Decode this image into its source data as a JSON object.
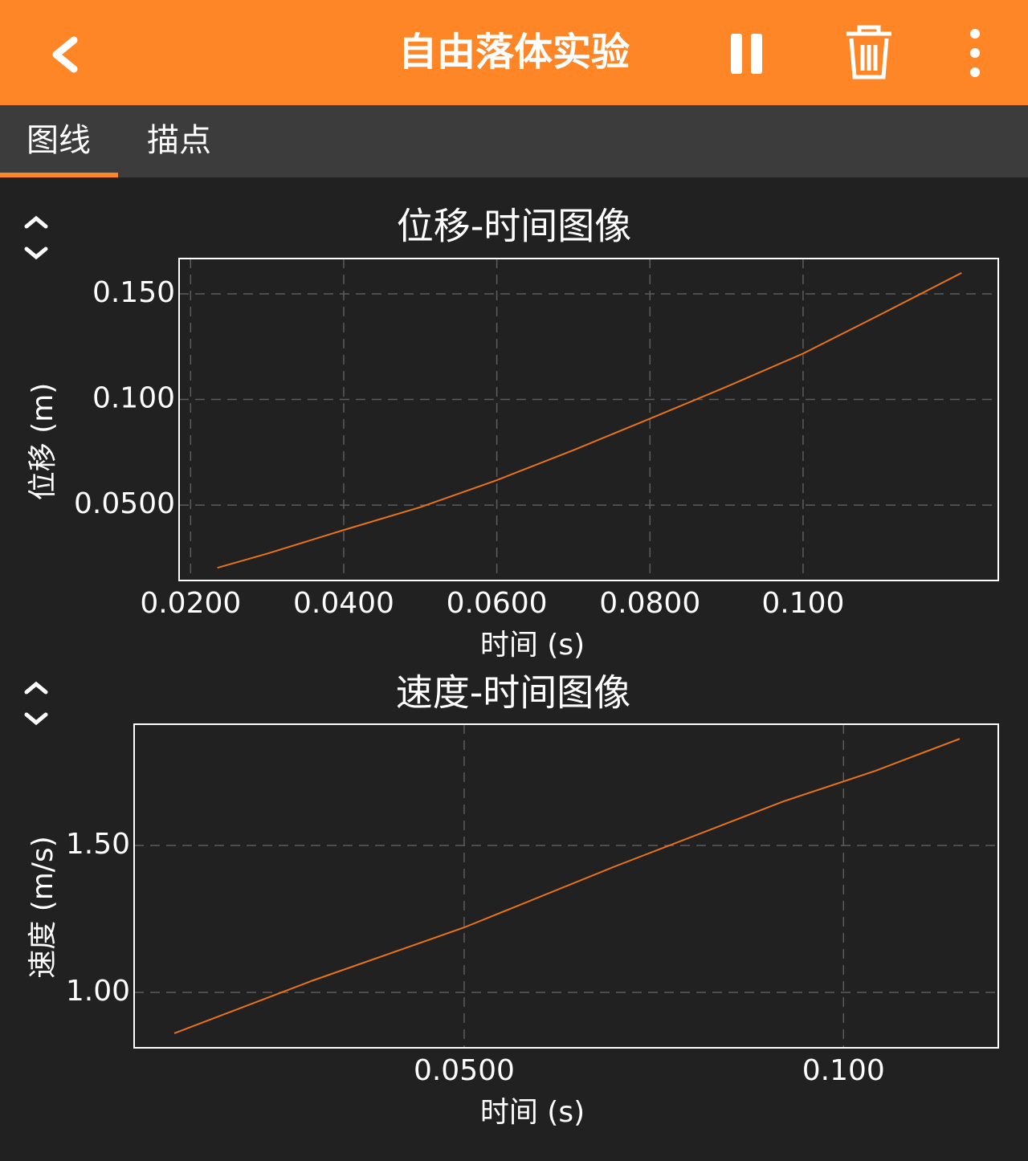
{
  "header": {
    "title": "自由落体实验"
  },
  "tabs": [
    "图线",
    "描点"
  ],
  "chart_data": [
    {
      "type": "line",
      "title": "位移-时间图像",
      "x_label": "时间 (s)",
      "y_label": "位移 (m)",
      "x": [
        0.0235,
        0.03,
        0.04,
        0.05,
        0.06,
        0.07,
        0.08,
        0.09,
        0.1,
        0.11,
        0.1207
      ],
      "values": [
        0.0203,
        0.027,
        0.0382,
        0.049,
        0.0618,
        0.076,
        0.0909,
        0.106,
        0.1217,
        0.14,
        0.1599
      ],
      "color": "#e8731a",
      "xlim": [
        0.0185,
        0.1255
      ],
      "ylim": [
        0.0143,
        0.1667
      ],
      "xticks": [
        {
          "value": 0.02,
          "label": "0.0200"
        },
        {
          "value": 0.04,
          "label": "0.0400"
        },
        {
          "value": 0.06,
          "label": "0.0600"
        },
        {
          "value": 0.08,
          "label": "0.0800"
        },
        {
          "value": 0.1,
          "label": "0.100"
        }
      ],
      "yticks": [
        {
          "value": 0.05,
          "label": "0.0500"
        },
        {
          "value": 0.1,
          "label": "0.100"
        },
        {
          "value": 0.15,
          "label": "0.150"
        }
      ],
      "grid": true
    },
    {
      "type": "line",
      "title": "速度-时间图像",
      "x_label": "时间 (s)",
      "y_label": "速度 (m/s)",
      "x": [
        0.0118,
        0.03,
        0.05,
        0.07,
        0.0921,
        0.1042,
        0.1153
      ],
      "values": [
        0.861,
        1.04,
        1.221,
        1.43,
        1.65,
        1.754,
        1.863
      ],
      "color": "#e8731a",
      "xlim": [
        0.0065,
        0.1204
      ],
      "ylim": [
        0.8115,
        1.9126
      ],
      "xticks": [
        {
          "value": 0.05,
          "label": "0.0500"
        },
        {
          "value": 0.1,
          "label": "0.100"
        }
      ],
      "yticks": [
        {
          "value": 1.0,
          "label": "1.00"
        },
        {
          "value": 1.5,
          "label": "1.50"
        }
      ],
      "grid": true
    }
  ]
}
